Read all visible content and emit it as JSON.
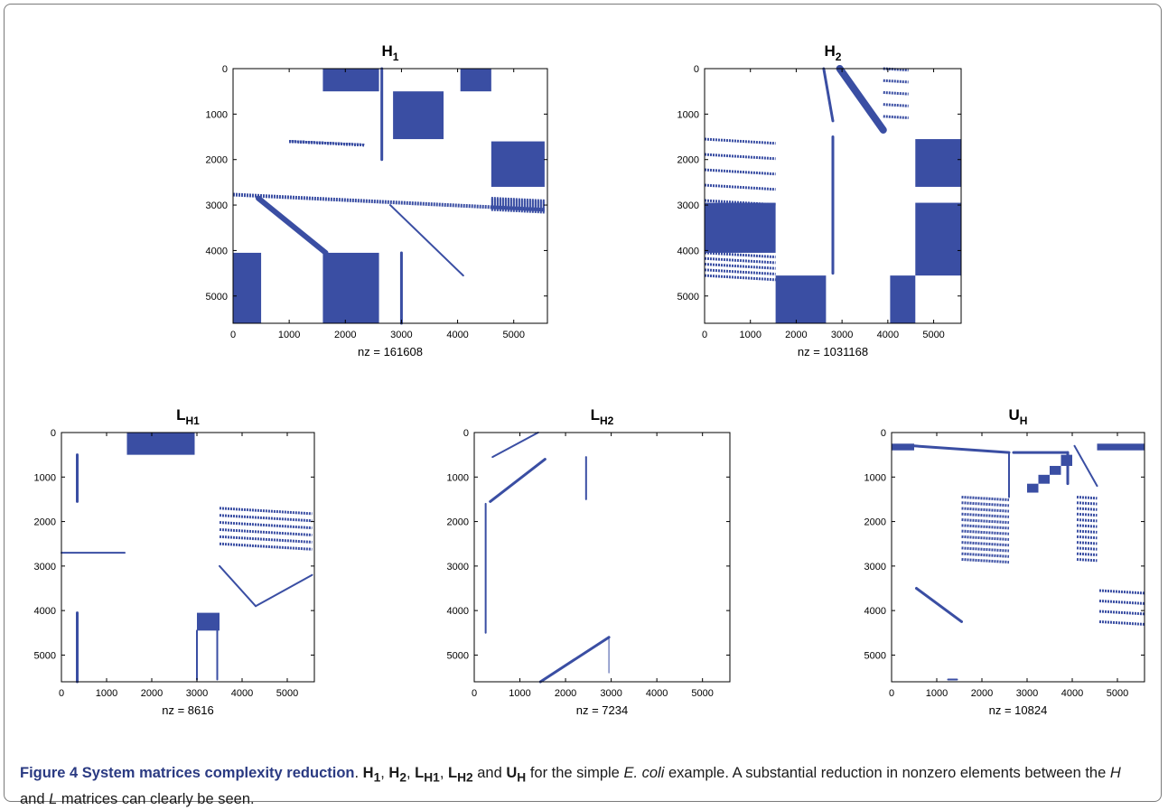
{
  "colors": {
    "marker": "#3a4ea3",
    "axis": "#000000",
    "caption_lead": "#2a3a82"
  },
  "chart_data": [
    {
      "type": "scatter",
      "subtype": "spy",
      "title": "H1",
      "title_main": "H",
      "title_sub": "1",
      "xlabel": "nz = 161608",
      "nz": 161608,
      "xlim": [
        0,
        5600
      ],
      "ylim": [
        0,
        5600
      ],
      "y_reversed": true,
      "xticks": [
        0,
        1000,
        2000,
        3000,
        4000,
        5000
      ],
      "yticks": [
        0,
        1000,
        2000,
        3000,
        4000,
        5000
      ],
      "blocks": [
        [
          1600,
          0,
          2600,
          500
        ],
        [
          2850,
          500,
          3750,
          1550
        ],
        [
          4050,
          0,
          4600,
          500
        ],
        [
          4600,
          1600,
          5550,
          2600
        ],
        [
          0,
          4050,
          500,
          5600
        ],
        [
          1600,
          4050,
          2600,
          5600
        ]
      ],
      "bands": [
        [
          1000,
          1600,
          2350,
          1600,
          3,
          8
        ],
        [
          4600,
          2850,
          5550,
          3100,
          3,
          9
        ],
        [
          0,
          2770,
          5550,
          2770,
          4,
          1
        ]
      ],
      "segments": [
        [
          450,
          2850,
          1650,
          4050,
          6
        ],
        [
          2650,
          0,
          2650,
          2000,
          3
        ],
        [
          2800,
          3000,
          4100,
          4550,
          2
        ],
        [
          3000,
          4050,
          3000,
          5600,
          3
        ]
      ]
    },
    {
      "type": "scatter",
      "subtype": "spy",
      "title": "H2",
      "title_main": "H",
      "title_sub": "2",
      "xlabel": "nz = 1031168",
      "nz": 1031168,
      "xlim": [
        0,
        5600
      ],
      "ylim": [
        0,
        5600
      ],
      "y_reversed": true,
      "xticks": [
        0,
        1000,
        2000,
        3000,
        4000,
        5000
      ],
      "yticks": [
        0,
        1000,
        2000,
        3000,
        4000,
        5000
      ],
      "blocks": [
        [
          0,
          2950,
          1550,
          4050
        ],
        [
          1550,
          4550,
          2650,
          5600
        ],
        [
          4050,
          4550,
          4600,
          5600
        ],
        [
          4600,
          1550,
          5600,
          2600
        ],
        [
          4600,
          2950,
          5600,
          4550
        ]
      ],
      "bands": [
        [
          0,
          1550,
          1550,
          2900,
          3,
          5
        ],
        [
          0,
          4050,
          1550,
          4550,
          3,
          5
        ],
        [
          3900,
          0,
          4450,
          1050,
          3,
          5
        ]
      ],
      "segments": [
        [
          2600,
          0,
          2800,
          1150,
          3
        ],
        [
          2950,
          0,
          3900,
          1350,
          8
        ],
        [
          2800,
          1500,
          2800,
          4500,
          3
        ]
      ]
    },
    {
      "type": "scatter",
      "subtype": "spy",
      "title": "LH1",
      "title_main": "L",
      "title_sub": "H1",
      "xlabel": "nz = 8616",
      "nz": 8616,
      "xlim": [
        0,
        5600
      ],
      "ylim": [
        0,
        5600
      ],
      "y_reversed": true,
      "xticks": [
        0,
        1000,
        2000,
        3000,
        4000,
        5000
      ],
      "yticks": [
        0,
        1000,
        2000,
        3000,
        4000,
        5000
      ],
      "blocks": [
        [
          1450,
          0,
          2950,
          500
        ],
        [
          3000,
          4050,
          3500,
          4450
        ]
      ],
      "bands": [
        [
          3500,
          1700,
          5550,
          2500,
          3,
          6
        ]
      ],
      "segments": [
        [
          350,
          500,
          350,
          1550,
          3
        ],
        [
          0,
          2700,
          1400,
          2700,
          2
        ],
        [
          350,
          4050,
          350,
          5600,
          3
        ],
        [
          3000,
          4450,
          3000,
          5550,
          2
        ],
        [
          3450,
          4450,
          3450,
          5550,
          2
        ],
        [
          3500,
          3000,
          4300,
          3900,
          2
        ],
        [
          4300,
          3900,
          5550,
          3200,
          2
        ]
      ]
    },
    {
      "type": "scatter",
      "subtype": "spy",
      "title": "LH2",
      "title_main": "L",
      "title_sub": "H2",
      "xlabel": "nz = 7234",
      "nz": 7234,
      "xlim": [
        0,
        5600
      ],
      "ylim": [
        0,
        5600
      ],
      "y_reversed": true,
      "xticks": [
        0,
        1000,
        2000,
        3000,
        4000,
        5000
      ],
      "yticks": [
        0,
        1000,
        2000,
        3000,
        4000,
        5000
      ],
      "blocks": [],
      "bands": [],
      "segments": [
        [
          400,
          550,
          1400,
          0,
          2
        ],
        [
          350,
          1550,
          1550,
          600,
          3
        ],
        [
          250,
          1600,
          250,
          4500,
          2
        ],
        [
          1450,
          5600,
          2950,
          4600,
          3
        ],
        [
          2450,
          550,
          2450,
          1500,
          2
        ],
        [
          2950,
          4600,
          2950,
          5400,
          1
        ],
        [
          5600,
          1700,
          5600,
          2400,
          1
        ]
      ]
    },
    {
      "type": "scatter",
      "subtype": "spy",
      "title": "UH",
      "title_main": "U",
      "title_sub": "H",
      "xlabel": "nz = 10824",
      "nz": 10824,
      "xlim": [
        0,
        5600
      ],
      "ylim": [
        0,
        5600
      ],
      "y_reversed": true,
      "xticks": [
        0,
        1000,
        2000,
        3000,
        4000,
        5000
      ],
      "yticks": [
        0,
        1000,
        2000,
        3000,
        4000,
        5000
      ],
      "blocks": [
        [
          0,
          250,
          500,
          400
        ],
        [
          3000,
          1150,
          3250,
          1350
        ],
        [
          3250,
          950,
          3500,
          1150
        ],
        [
          3500,
          750,
          3750,
          950
        ],
        [
          3750,
          500,
          4000,
          750
        ],
        [
          4550,
          250,
          5600,
          400
        ]
      ],
      "bands": [
        [
          1550,
          1450,
          2600,
          2850,
          3,
          12
        ],
        [
          4100,
          1450,
          4550,
          2850,
          3,
          12
        ],
        [
          4600,
          3550,
          5600,
          4250,
          3,
          4
        ]
      ],
      "segments": [
        [
          500,
          300,
          2600,
          450,
          3
        ],
        [
          2600,
          450,
          2600,
          1450,
          2
        ],
        [
          2700,
          450,
          3900,
          450,
          3
        ],
        [
          3900,
          450,
          3900,
          1150,
          3
        ],
        [
          4050,
          300,
          4550,
          1200,
          2
        ],
        [
          550,
          3500,
          1550,
          4250,
          3
        ],
        [
          1250,
          5550,
          1450,
          5550,
          2
        ]
      ]
    }
  ],
  "caption": {
    "figure_label": "Figure 4",
    "figure_title": "System matrices complexity reduction",
    "sep1": ". ",
    "m1": "H",
    "m1_sub": "1",
    "c1": ", ",
    "m2": "H",
    "m2_sub": "2",
    "c2": ", ",
    "m3": "L",
    "m3_sub": "H1",
    "c3": ", ",
    "m4": "L",
    "m4_sub": "H2",
    "and_word": " and ",
    "m5": "U",
    "m5_sub": "H",
    "t1": " for the simple ",
    "species": "E. coli",
    "t2": " example. A substantial reduction in nonzero elements between the ",
    "h_italic": "H",
    "t3": " and ",
    "l_italic": "L",
    "t4": " matrices can clearly be seen."
  }
}
